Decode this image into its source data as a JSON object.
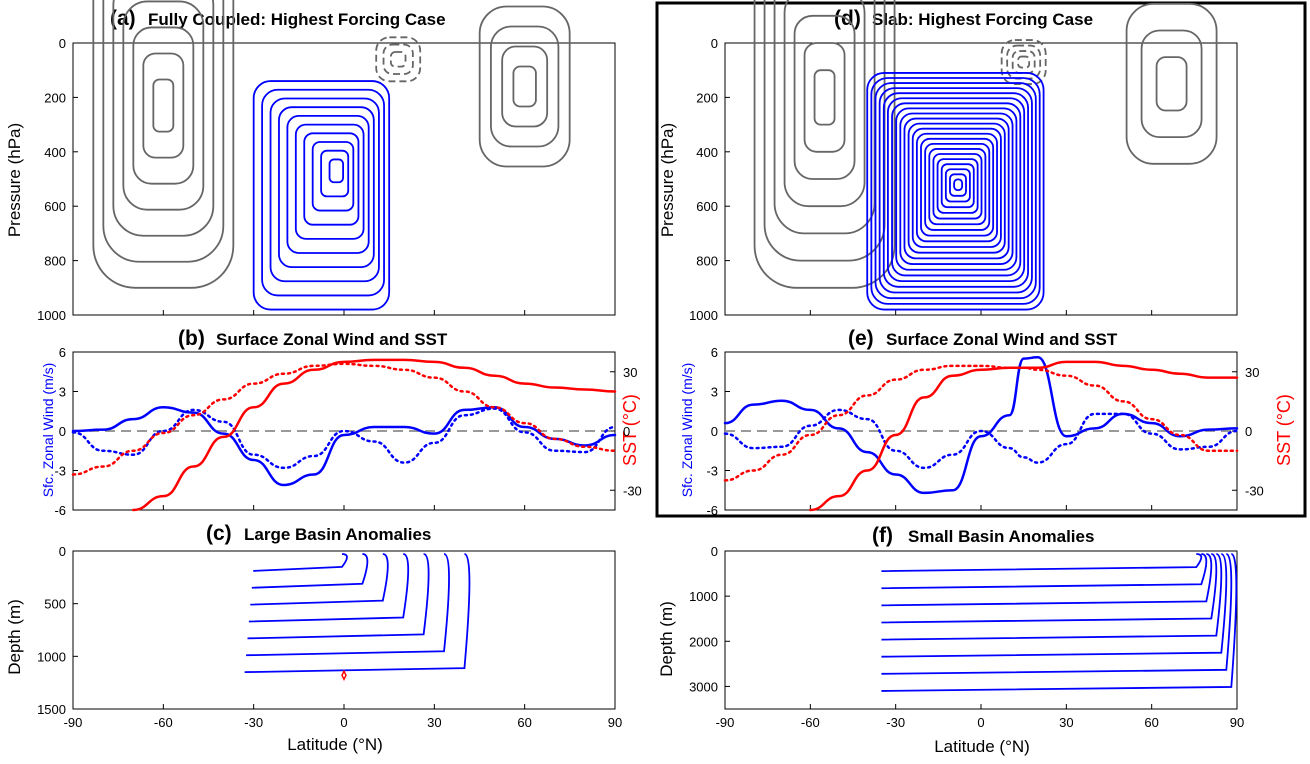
{
  "colors": {
    "blue": "#0000ff",
    "red": "#ff0000",
    "gray": "#666666",
    "zero_line": "#999999"
  },
  "chart_data": [
    {
      "panel": "a",
      "label": "(a)",
      "title": "Fully Coupled: Highest Forcing Case",
      "type": "contour",
      "ylabel": "Pressure (hPa)",
      "xlim": [
        -90,
        90
      ],
      "ylim": [
        0,
        1000
      ],
      "y_reversed": true,
      "xticks": [
        "-90",
        "-60",
        "-30",
        "0",
        "30",
        "60",
        "90"
      ],
      "yticks": [
        "0",
        "200",
        "400",
        "600",
        "800",
        "1000"
      ],
      "gray_cells": [
        {
          "center": [
            -60,
            230
          ],
          "levels": 7,
          "sign": "positive"
        },
        {
          "center": [
            60,
            160
          ],
          "levels": 4,
          "sign": "positive"
        },
        {
          "center": [
            18,
            60
          ],
          "levels": 3,
          "sign": "negative"
        }
      ],
      "blue_cell": {
        "center": [
          -2,
          460
        ],
        "extent_lat": [
          -30,
          15
        ],
        "extent_p": [
          140,
          980
        ],
        "levels": 10
      }
    },
    {
      "panel": "b",
      "label": "(b)",
      "title": "Surface Zonal Wind and SST",
      "type": "line",
      "dual_axis": true,
      "ylabel": "Sfc. Zonal Wind (m/s)",
      "ylabel_right": "SST (°C)",
      "xlim": [
        -90,
        90
      ],
      "ylim": [
        -6,
        6
      ],
      "ylim_right": [
        -40,
        40
      ],
      "yticks": [
        "-6",
        "-3",
        "0",
        "3",
        "6"
      ],
      "yticks_right": [
        "-30",
        "0",
        "30"
      ],
      "x": [
        -90,
        -80,
        -70,
        -60,
        -50,
        -40,
        -30,
        -20,
        -10,
        0,
        10,
        20,
        30,
        40,
        50,
        60,
        70,
        80,
        90
      ],
      "series": [
        {
          "style": "blue-solid",
          "axis": "left",
          "values": [
            0,
            0.1,
            0.9,
            1.8,
            1.4,
            -0.2,
            -2.2,
            -4.1,
            -3.3,
            -0.3,
            0.3,
            0.3,
            -0.2,
            1.6,
            1.8,
            0.3,
            -0.6,
            -1.1,
            -0.3
          ]
        },
        {
          "style": "blue-dotted",
          "axis": "left",
          "values": [
            -0.1,
            -1.5,
            -1.8,
            0,
            1.6,
            0.7,
            -1.8,
            -2.8,
            -1.9,
            0,
            -0.8,
            -2.4,
            -0.9,
            1.2,
            1.7,
            -0.1,
            -1.5,
            -1.6,
            0.3
          ]
        },
        {
          "style": "red-solid",
          "axis": "right",
          "values": [
            null,
            null,
            -42,
            -33,
            -18,
            -3,
            12,
            24,
            31,
            35,
            36,
            36,
            35,
            32,
            28,
            24,
            22,
            21,
            20
          ]
        },
        {
          "style": "red-dotted",
          "axis": "right",
          "values": [
            -22,
            -18,
            -10,
            -1,
            8,
            16,
            24,
            29,
            33,
            34,
            33,
            31,
            27,
            20,
            12,
            4,
            -4,
            -8,
            -10
          ]
        }
      ]
    },
    {
      "panel": "c",
      "label": "(c)",
      "title": "Large Basin Anomalies",
      "type": "contour",
      "ylabel": "Depth (m)",
      "xlabel": "Latitude (°N)",
      "xlim": [
        -90,
        90
      ],
      "ylim": [
        0,
        1500
      ],
      "y_reversed": true,
      "xticks": [
        "-90",
        "-60",
        "-30",
        "0",
        "30",
        "60",
        "90"
      ],
      "yticks": [
        "0",
        "500",
        "1000",
        "1500"
      ],
      "blue_extent_lat": [
        -33,
        40
      ],
      "levels": 7,
      "red_marker": [
        0,
        1180
      ]
    },
    {
      "panel": "d",
      "label": "(d)",
      "title": "Slab: Highest Forcing Case",
      "type": "contour",
      "ylabel": "Pressure (hPa)",
      "xlim": [
        -90,
        90
      ],
      "ylim": [
        0,
        1000
      ],
      "y_reversed": true,
      "yticks": [
        "0",
        "200",
        "400",
        "600",
        "800",
        "1000"
      ],
      "gray_cells": [
        {
          "center": [
            -55,
            200
          ],
          "levels": 7,
          "sign": "positive"
        },
        {
          "center": [
            67,
            150
          ],
          "levels": 3,
          "sign": "positive"
        },
        {
          "center": [
            15,
            70
          ],
          "levels": 4,
          "sign": "negative"
        }
      ],
      "blue_cell": {
        "center": [
          -8,
          520
        ],
        "extent_lat": [
          -40,
          22
        ],
        "extent_p": [
          110,
          980
        ],
        "levels": 22
      }
    },
    {
      "panel": "e",
      "label": "(e)",
      "title": "Surface Zonal Wind and SST",
      "type": "line",
      "dual_axis": true,
      "ylabel": "Sfc. Zonal Wind (m/s)",
      "ylabel_right": "SST (°C)",
      "xlim": [
        -90,
        90
      ],
      "ylim": [
        -6,
        6
      ],
      "ylim_right": [
        -40,
        40
      ],
      "yticks": [
        "-6",
        "-3",
        "0",
        "3",
        "6"
      ],
      "yticks_right": [
        "-30",
        "0",
        "30"
      ],
      "x": [
        -90,
        -80,
        -70,
        -60,
        -50,
        -40,
        -30,
        -20,
        -10,
        0,
        10,
        15,
        20,
        30,
        40,
        50,
        60,
        70,
        80,
        90
      ],
      "series": [
        {
          "style": "blue-solid",
          "axis": "left",
          "values": [
            0.6,
            2.0,
            2.3,
            1.6,
            0.2,
            -1.6,
            -3.3,
            -4.7,
            -4.5,
            -0.4,
            1.2,
            5.5,
            5.6,
            -0.4,
            0.2,
            1.3,
            0.6,
            -0.4,
            0.1,
            0.2
          ]
        },
        {
          "style": "blue-dotted",
          "axis": "left",
          "values": [
            -0.2,
            -1.3,
            -1.2,
            0.4,
            1.6,
            0.9,
            -1.5,
            -2.8,
            -1.8,
            0,
            -1.3,
            -2.0,
            -2.4,
            -1.0,
            1.3,
            1.3,
            -0.2,
            -1.4,
            -1.2,
            0
          ]
        },
        {
          "style": "red-solid",
          "axis": "right",
          "values": [
            null,
            null,
            null,
            -42,
            -33,
            -20,
            -2,
            17,
            28,
            31,
            32,
            32,
            32,
            35,
            35,
            33,
            31,
            29,
            27,
            27
          ]
        },
        {
          "style": "red-dotted",
          "axis": "right",
          "values": [
            -25,
            -20,
            -12,
            -2,
            8,
            18,
            26,
            31,
            33,
            33,
            32,
            32,
            31,
            28,
            23,
            15,
            6,
            -2,
            -10,
            -10
          ]
        }
      ]
    },
    {
      "panel": "f",
      "label": "(f)",
      "title": "Small Basin Anomalies",
      "type": "contour",
      "ylabel": "Depth (m)",
      "xlabel": "Latitude (°N)",
      "xlim": [
        -90,
        90
      ],
      "ylim": [
        0,
        3500
      ],
      "y_reversed": true,
      "xticks": [
        "-90",
        "-60",
        "-30",
        "0",
        "30",
        "60",
        "90"
      ],
      "yticks": [
        "0",
        "1000",
        "2000",
        "3000"
      ],
      "blue_extent_lat": [
        -35,
        88
      ],
      "levels": 8
    }
  ]
}
